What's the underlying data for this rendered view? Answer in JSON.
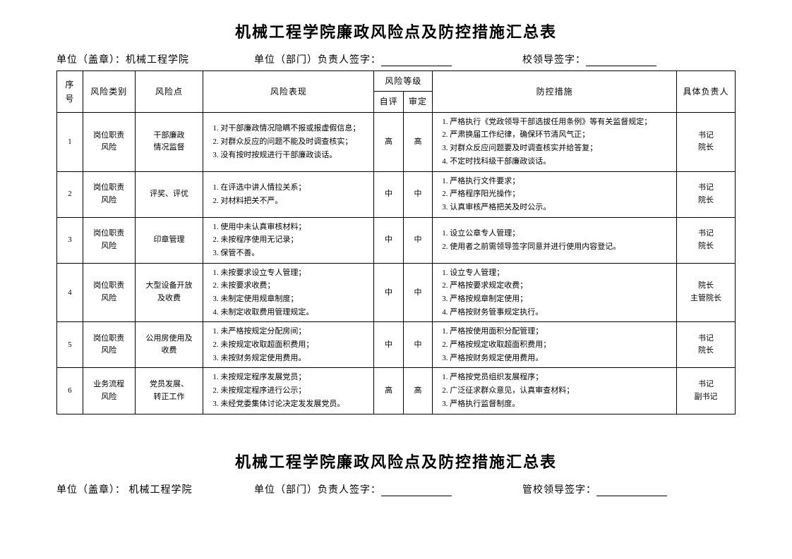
{
  "doc": {
    "title": "机械工程学院廉政风险点及防控措施汇总表",
    "second_title": "机械工程学院廉政风险点及防控措施汇总表",
    "unit_label": "单位（盖章）：",
    "unit_name": "机械工程学院",
    "signer_label": "单位（部门）负责人签字：",
    "leader_label_1": "校领导签字：",
    "leader_label_2": "管校领导签字：",
    "headers": {
      "idx": "序号",
      "category": "风险类别",
      "point": "风险点",
      "perform": "风险表现",
      "level": "风险等级",
      "level_self": "自评",
      "level_judge": "审定",
      "control": "防控措施",
      "resp": "具体负责人"
    },
    "rows": [
      {
        "idx": "1",
        "category_l1": "岗位职责",
        "category_l2": "风险",
        "point_l1": "干部廉政",
        "point_l2": "情况监督",
        "perform": [
          "对干部廉政情况隐瞒不报或报虚假信息；",
          "对群众反应的问题不能及时调查核实；",
          "没有按时按规进行干部廉政谈话。"
        ],
        "lvl_self": "高",
        "lvl_judge": "高",
        "control": [
          "严格执行《党政领导干部选拔任用条例》等有关监督规定；",
          "严肃换届工作纪律，确保环节清风气正；",
          "对群众反应问题要及时调查核实并给答复；",
          "不定时找科级干部廉政谈话。"
        ],
        "resp_l1": "书记",
        "resp_l2": "院长"
      },
      {
        "idx": "2",
        "category_l1": "岗位职责",
        "category_l2": "风险",
        "point_l1": "评奖、评优",
        "point_l2": "",
        "perform": [
          "在评选中讲人情拉关系；",
          "对材料把关不严。"
        ],
        "lvl_self": "中",
        "lvl_judge": "中",
        "control": [
          "严格执行文件要求；",
          "严格程序阳光操作；",
          "认真审核严格把关及时公示。"
        ],
        "resp_l1": "书记",
        "resp_l2": "院长"
      },
      {
        "idx": "3",
        "category_l1": "岗位职责",
        "category_l2": "风险",
        "point_l1": "印章管理",
        "point_l2": "",
        "perform": [
          "使用中未认真审核材料；",
          "未按程序使用无记录；",
          "保管不善。"
        ],
        "lvl_self": "中",
        "lvl_judge": "中",
        "control": [
          "设立公章专人管理；",
          "使用者之前需领导签字同意并进行使用内容登记。"
        ],
        "resp_l1": "书记",
        "resp_l2": "院长"
      },
      {
        "idx": "4",
        "category_l1": "岗位职责",
        "category_l2": "风险",
        "point_l1": "大型设备开放",
        "point_l2": "及收费",
        "perform": [
          "未按要求设立专人管理；",
          "未按要求收费；",
          "未制定使用规章制度；",
          "未制定收取费用管理规定。"
        ],
        "lvl_self": "中",
        "lvl_judge": "中",
        "control": [
          "设立专人管理；",
          "严格按要求规定收费；",
          "严格按规章制定使用；",
          "严格按财务管事规定执行。"
        ],
        "resp_l1": "院长",
        "resp_l2": "主管院长"
      },
      {
        "idx": "5",
        "category_l1": "岗位职责",
        "category_l2": "风险",
        "point_l1": "公用房使用及",
        "point_l2": "收费",
        "perform": [
          "未严格按规定分配房间；",
          "未按规定收取超面积费用；",
          "未按财务规定使用费用。"
        ],
        "lvl_self": "中",
        "lvl_judge": "中",
        "control": [
          "严格按使用面积分配管理；",
          "严格按规定收取超面积费用；",
          "严格按财务规定使用费用。"
        ],
        "resp_l1": "书记",
        "resp_l2": "院长"
      },
      {
        "idx": "6",
        "category_l1": "业务流程",
        "category_l2": "风险",
        "point_l1": "党员发展、",
        "point_l2": "转正工作",
        "perform": [
          "未按规定程序发展党员；",
          "未按规定程序进行公示；",
          "未经党委集体讨论决定发发展党员。"
        ],
        "lvl_self": "高",
        "lvl_judge": "高",
        "control": [
          "严格按党员组织发展程序；",
          "广泛征求群众意见，认真审查材料；",
          "严格执行监督制度。"
        ],
        "resp_l1": "书记",
        "resp_l2": "副书记"
      }
    ]
  }
}
